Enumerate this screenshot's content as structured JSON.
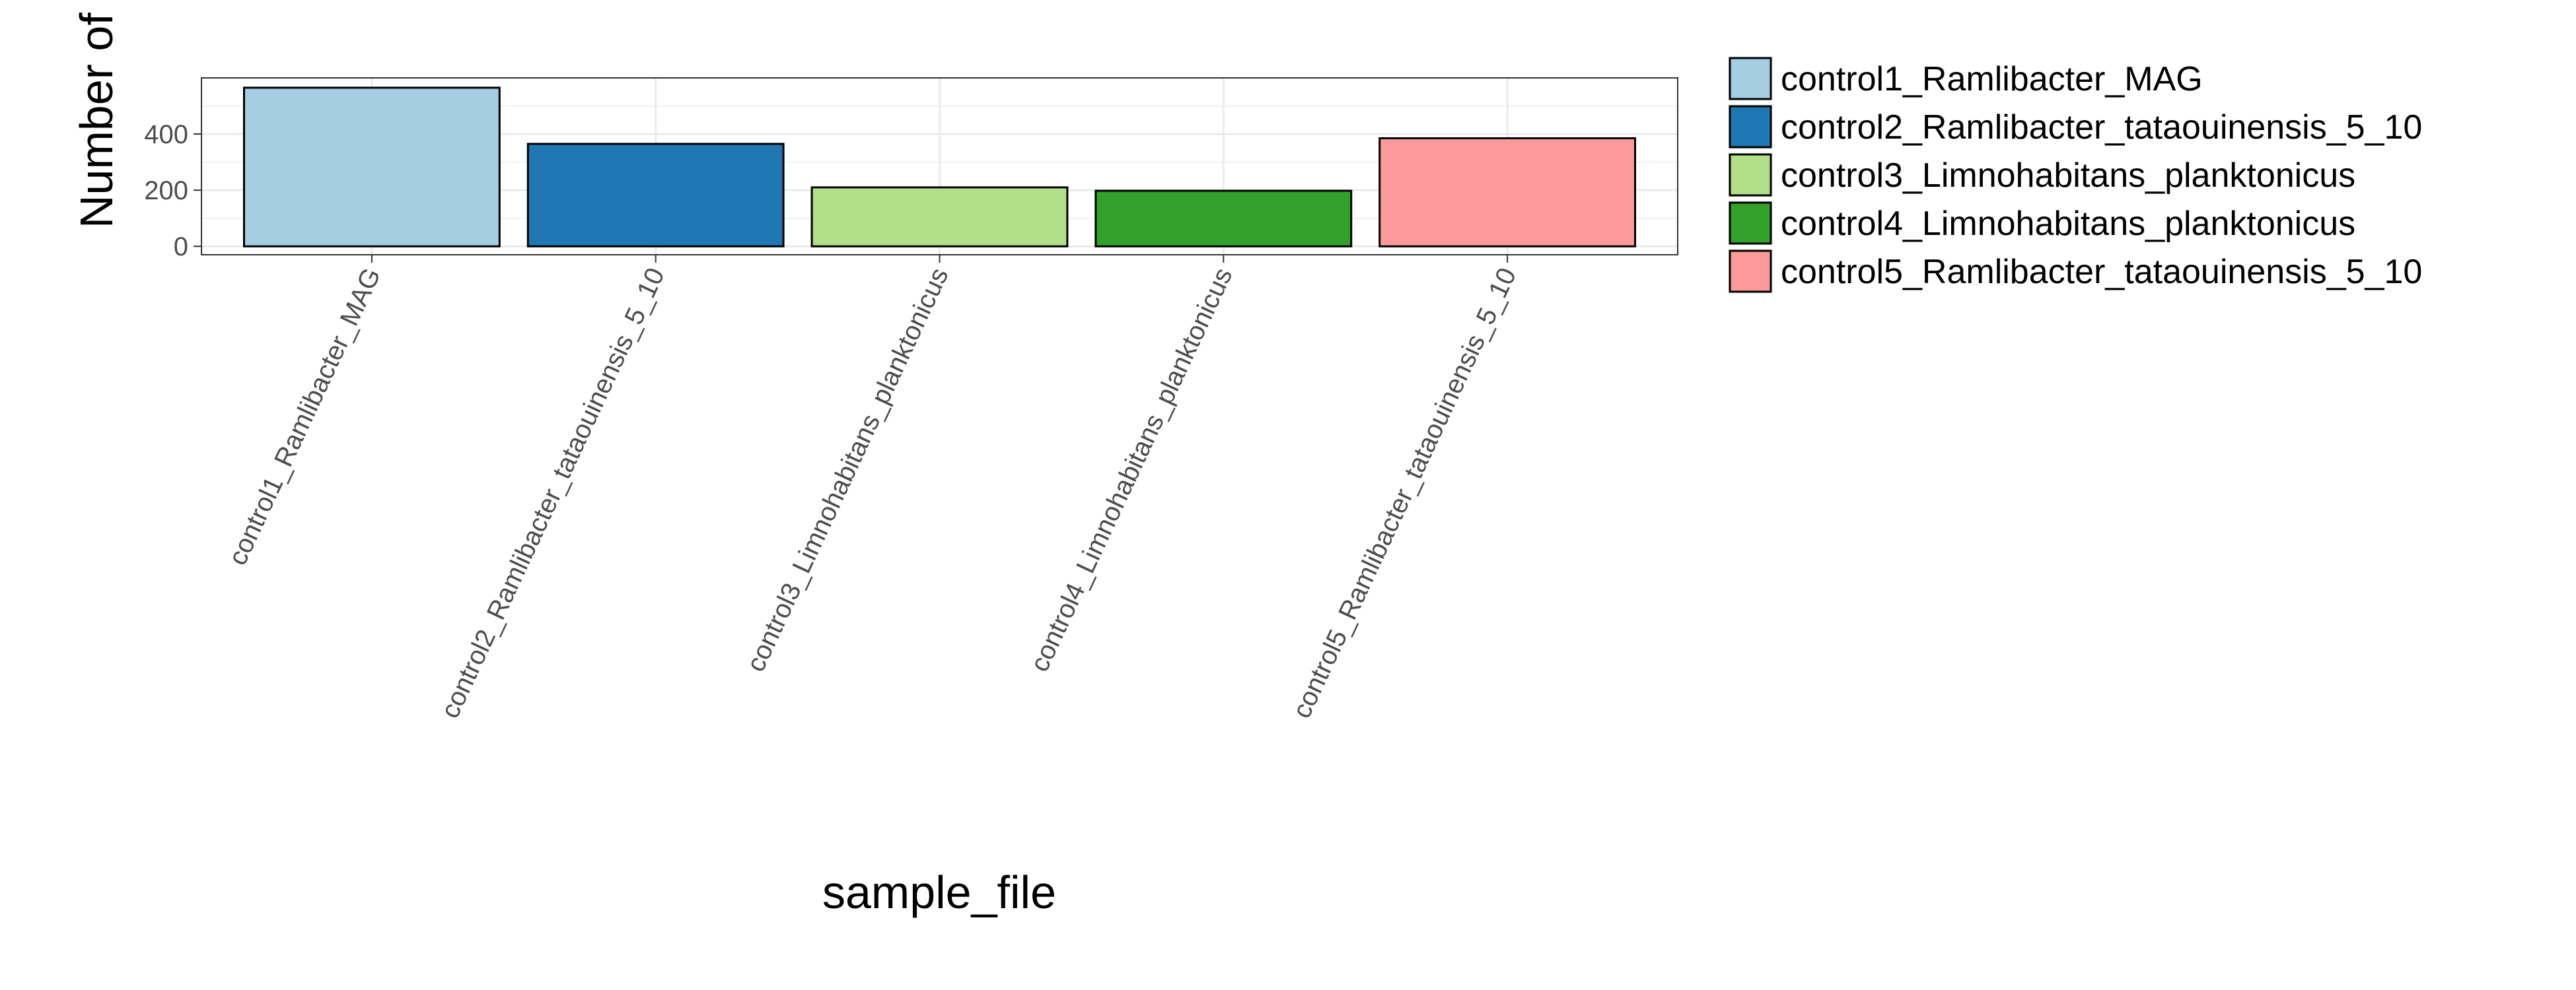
{
  "chart_data": {
    "type": "bar",
    "title": "",
    "xlabel": "sample_file",
    "ylabel": "Number of PSG",
    "categories": [
      "control1_Ramlibacter_MAG",
      "control2_Ramlibacter_tataouinensis_5_10",
      "control3_Limnohabitans_planktonicus",
      "control4_Limnohabitans_planktonicus",
      "control5_Ramlibacter_tataouinensis_5_10"
    ],
    "values": [
      565,
      365,
      210,
      198,
      385
    ],
    "colors": [
      "#a6cee3",
      "#1f78b4",
      "#b2df8a",
      "#33a02c",
      "#fb9a99"
    ],
    "yticks": [
      0,
      200,
      400
    ],
    "ylim": [
      -30,
      600
    ],
    "grid": true,
    "legend": {
      "placement": "right",
      "entries": [
        "control1_Ramlibacter_MAG",
        "control2_Ramlibacter_tataouinensis_5_10",
        "control3_Limnohabitans_planktonicus",
        "control4_Limnohabitans_planktonicus",
        "control5_Ramlibacter_tataouinensis_5_10"
      ]
    }
  }
}
